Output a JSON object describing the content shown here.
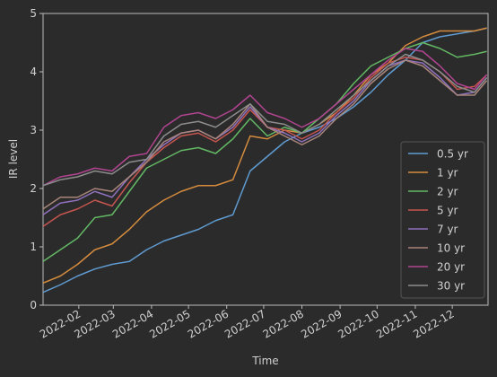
{
  "chart_data": {
    "type": "line",
    "xlabel": "Time",
    "ylabel": "IR level",
    "x": [
      2,
      16,
      30,
      44,
      58,
      72,
      86,
      100,
      114,
      128,
      142,
      156,
      170,
      184,
      198,
      212,
      226,
      240,
      254,
      268,
      282,
      296,
      310,
      324,
      338,
      352,
      362
    ],
    "xlim": [
      2,
      363
    ],
    "xticks": [
      {
        "value": 31,
        "label": "2022-02"
      },
      {
        "value": 59,
        "label": "2022-03"
      },
      {
        "value": 90,
        "label": "2022-04"
      },
      {
        "value": 120,
        "label": "2022-05"
      },
      {
        "value": 151,
        "label": "2022-06"
      },
      {
        "value": 181,
        "label": "2022-07"
      },
      {
        "value": 212,
        "label": "2022-08"
      },
      {
        "value": 243,
        "label": "2022-09"
      },
      {
        "value": 273,
        "label": "2022-10"
      },
      {
        "value": 304,
        "label": "2022-11"
      },
      {
        "value": 334,
        "label": "2022-12"
      }
    ],
    "ylim": [
      0,
      5
    ],
    "yticks": [
      0,
      1,
      2,
      3,
      4,
      5
    ],
    "legend": "lower right",
    "series": [
      {
        "name": "0.5 yr",
        "color": "#5f9bd1",
        "values": [
          0.22,
          0.35,
          0.5,
          0.62,
          0.7,
          0.75,
          0.95,
          1.1,
          1.2,
          1.3,
          1.45,
          1.55,
          2.3,
          2.55,
          2.8,
          2.95,
          3.05,
          3.2,
          3.4,
          3.65,
          3.95,
          4.2,
          4.5,
          4.6,
          4.65,
          4.7,
          4.75
        ]
      },
      {
        "name": "1 yr",
        "color": "#d48b3e",
        "values": [
          0.38,
          0.5,
          0.7,
          0.95,
          1.05,
          1.3,
          1.6,
          1.8,
          1.95,
          2.05,
          2.05,
          2.15,
          2.9,
          2.85,
          3.0,
          2.95,
          3.1,
          3.3,
          3.6,
          3.95,
          4.15,
          4.45,
          4.6,
          4.7,
          4.7,
          4.7,
          4.75
        ]
      },
      {
        "name": "2 yr",
        "color": "#63b864",
        "values": [
          0.75,
          0.95,
          1.15,
          1.5,
          1.55,
          1.95,
          2.35,
          2.5,
          2.65,
          2.7,
          2.6,
          2.85,
          3.2,
          2.9,
          3.05,
          2.95,
          3.2,
          3.45,
          3.8,
          4.1,
          4.25,
          4.4,
          4.5,
          4.4,
          4.25,
          4.3,
          4.35
        ]
      },
      {
        "name": "5 yr",
        "color": "#c5554e",
        "values": [
          1.35,
          1.55,
          1.65,
          1.8,
          1.7,
          2.1,
          2.45,
          2.7,
          2.9,
          2.95,
          2.8,
          3.0,
          3.35,
          3.05,
          3.0,
          2.85,
          3.0,
          3.3,
          3.55,
          3.9,
          4.15,
          4.25,
          4.2,
          4.0,
          3.7,
          3.75,
          3.95
        ]
      },
      {
        "name": "7 yr",
        "color": "#8f71bd",
        "values": [
          1.55,
          1.75,
          1.8,
          1.95,
          1.85,
          2.2,
          2.5,
          2.75,
          2.95,
          3.0,
          2.85,
          3.05,
          3.4,
          3.05,
          2.95,
          2.8,
          2.95,
          3.25,
          3.5,
          3.85,
          4.1,
          4.2,
          4.15,
          3.9,
          3.6,
          3.65,
          3.9
        ]
      },
      {
        "name": "10 yr",
        "color": "#a8857a",
        "values": [
          1.65,
          1.85,
          1.85,
          2.0,
          1.95,
          2.2,
          2.45,
          2.8,
          2.95,
          3.0,
          2.85,
          3.1,
          3.45,
          3.05,
          2.9,
          2.75,
          2.9,
          3.2,
          3.45,
          3.8,
          4.05,
          4.2,
          4.1,
          3.85,
          3.6,
          3.6,
          3.85
        ]
      },
      {
        "name": "20 yr",
        "color": "#b14490",
        "values": [
          2.05,
          2.2,
          2.25,
          2.35,
          2.3,
          2.55,
          2.6,
          3.05,
          3.25,
          3.3,
          3.2,
          3.35,
          3.6,
          3.3,
          3.2,
          3.05,
          3.2,
          3.45,
          3.7,
          3.95,
          4.2,
          4.4,
          4.35,
          4.1,
          3.8,
          3.7,
          3.95
        ]
      },
      {
        "name": "30 yr",
        "color": "#8c8c8c",
        "values": [
          2.05,
          2.15,
          2.2,
          2.3,
          2.25,
          2.45,
          2.5,
          2.9,
          3.1,
          3.15,
          3.05,
          3.25,
          3.45,
          3.15,
          3.1,
          2.95,
          3.1,
          3.35,
          3.6,
          3.85,
          4.1,
          4.3,
          4.2,
          4.0,
          3.75,
          3.65,
          3.9
        ]
      }
    ]
  }
}
